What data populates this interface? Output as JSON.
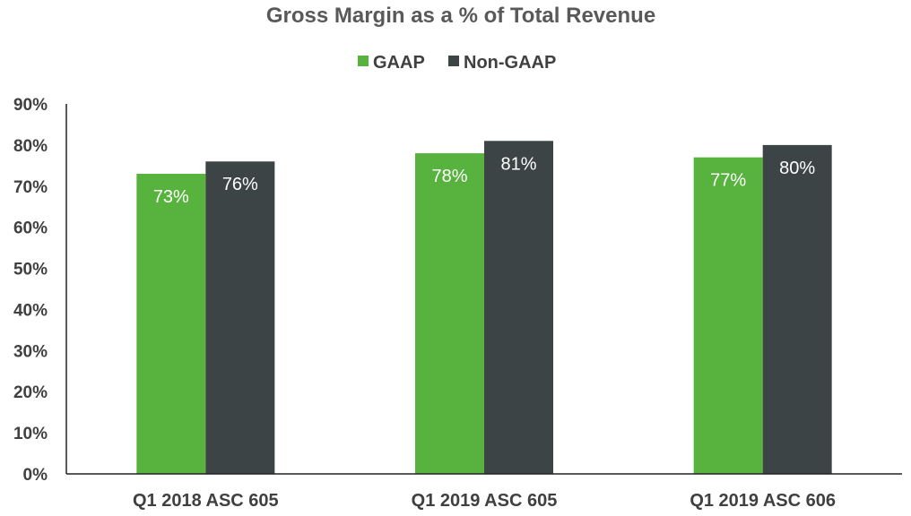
{
  "chart_data": {
    "type": "bar",
    "title": "Gross Margin as a % of Total Revenue",
    "xlabel": "",
    "ylabel": "",
    "categories": [
      "Q1 2018 ASC 605",
      "Q1 2019 ASC 605",
      "Q1 2019 ASC 606"
    ],
    "series": [
      {
        "name": "GAAP",
        "color": "#57B33E",
        "values": [
          73,
          78,
          77
        ],
        "labels": [
          "73%",
          "78%",
          "77%"
        ]
      },
      {
        "name": "Non-GAAP",
        "color": "#3D4446",
        "values": [
          76,
          81,
          80
        ],
        "labels": [
          "76%",
          "81%",
          "80%"
        ]
      }
    ],
    "ylim": [
      0,
      90
    ],
    "y_ticks": [
      0,
      10,
      20,
      30,
      40,
      50,
      60,
      70,
      80,
      90
    ],
    "y_tick_labels": [
      "0%",
      "10%",
      "20%",
      "30%",
      "40%",
      "50%",
      "60%",
      "70%",
      "80%",
      "90%"
    ],
    "legend_position": "top",
    "grid": false
  }
}
